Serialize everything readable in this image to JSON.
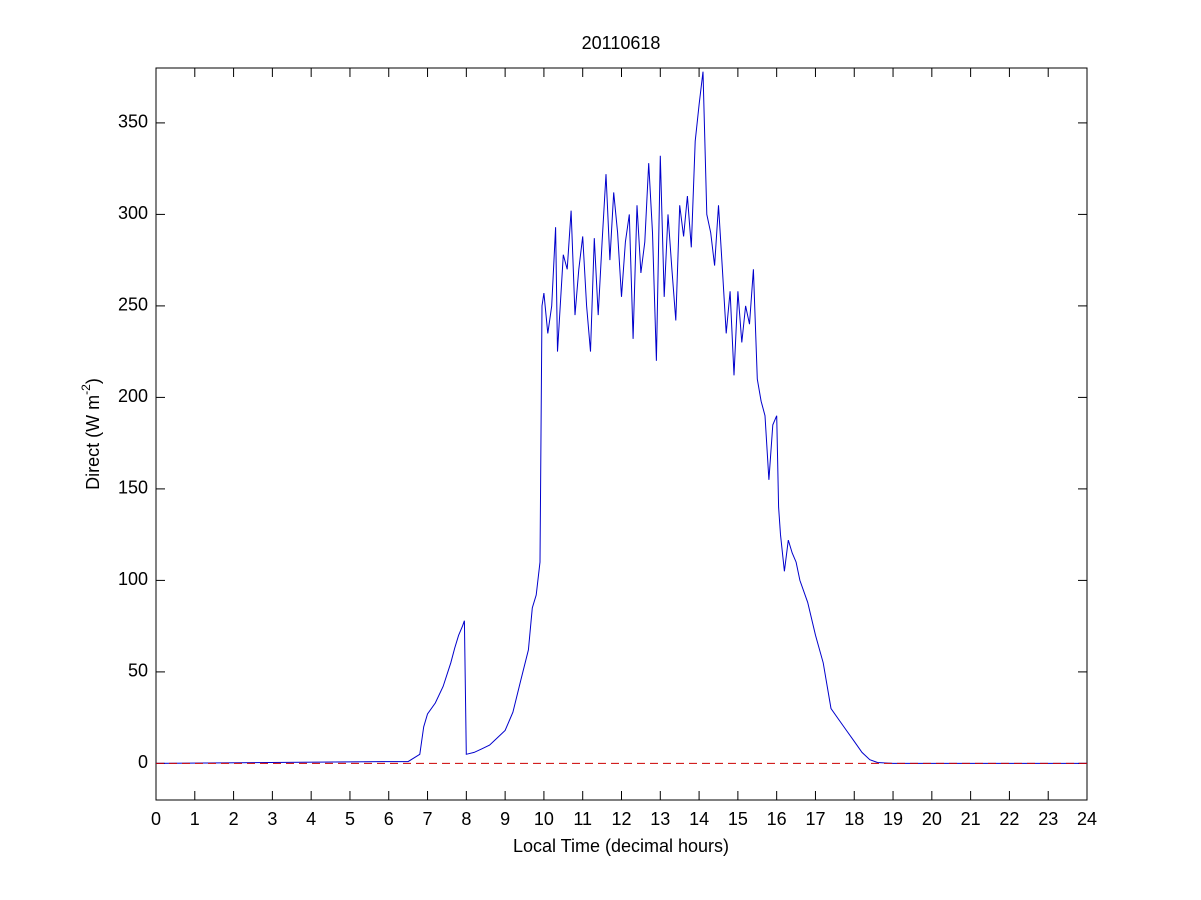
{
  "chart_data": {
    "type": "line",
    "title": "20110618",
    "xlabel": "Local Time (decimal hours)",
    "ylabel": "Direct (W m",
    "ylabel_superscript": "-2",
    "ylabel_end": ")",
    "xlim": [
      0,
      24
    ],
    "ylim": [
      -20,
      380
    ],
    "xticks": [
      0,
      1,
      2,
      3,
      4,
      5,
      6,
      7,
      8,
      9,
      10,
      11,
      12,
      13,
      14,
      15,
      16,
      17,
      18,
      19,
      20,
      21,
      22,
      23,
      24
    ],
    "yticks": [
      0,
      50,
      100,
      150,
      200,
      250,
      300,
      350
    ],
    "grid": false,
    "series": [
      {
        "color": "#0000cc",
        "x": [
          0,
          6,
          6.5,
          6.8,
          6.9,
          7.0,
          7.2,
          7.4,
          7.6,
          7.7,
          7.8,
          7.9,
          7.95,
          8.0,
          8.2,
          8.4,
          8.6,
          8.8,
          9.0,
          9.2,
          9.4,
          9.6,
          9.7,
          9.8,
          9.9,
          9.95,
          10.0,
          10.1,
          10.2,
          10.3,
          10.35,
          10.5,
          10.6,
          10.7,
          10.8,
          10.9,
          11.0,
          11.1,
          11.2,
          11.3,
          11.4,
          11.5,
          11.6,
          11.7,
          11.8,
          11.9,
          12.0,
          12.1,
          12.2,
          12.3,
          12.4,
          12.5,
          12.6,
          12.7,
          12.8,
          12.9,
          13.0,
          13.1,
          13.2,
          13.3,
          13.4,
          13.5,
          13.6,
          13.7,
          13.8,
          13.9,
          14.0,
          14.1,
          14.2,
          14.3,
          14.4,
          14.5,
          14.6,
          14.7,
          14.8,
          14.9,
          15.0,
          15.1,
          15.2,
          15.3,
          15.4,
          15.5,
          15.6,
          15.7,
          15.8,
          15.9,
          16.0,
          16.05,
          16.1,
          16.2,
          16.3,
          16.4,
          16.5,
          16.6,
          16.8,
          17.0,
          17.2,
          17.4,
          17.6,
          17.8,
          18.0,
          18.2,
          18.4,
          18.6,
          19.0,
          24
        ],
        "values": [
          0,
          1,
          1,
          5,
          20,
          27,
          33,
          42,
          55,
          63,
          70,
          75,
          78,
          5,
          6,
          8,
          10,
          14,
          18,
          28,
          45,
          62,
          85,
          92,
          110,
          250,
          257,
          235,
          250,
          293,
          225,
          278,
          270,
          302,
          245,
          270,
          288,
          250,
          225,
          287,
          245,
          285,
          322,
          275,
          312,
          290,
          255,
          285,
          300,
          232,
          305,
          268,
          285,
          328,
          290,
          220,
          332,
          255,
          300,
          270,
          242,
          305,
          288,
          310,
          282,
          340,
          360,
          378,
          300,
          290,
          272,
          305,
          270,
          235,
          258,
          212,
          258,
          230,
          250,
          240,
          270,
          210,
          198,
          190,
          155,
          185,
          190,
          140,
          125,
          105,
          122,
          115,
          110,
          100,
          88,
          70,
          55,
          30,
          24,
          18,
          12,
          6,
          2,
          0.5,
          0,
          0
        ]
      },
      {
        "color": "#cc0000",
        "dash": true,
        "x": [
          0,
          24
        ],
        "values": [
          0,
          0
        ]
      }
    ]
  }
}
